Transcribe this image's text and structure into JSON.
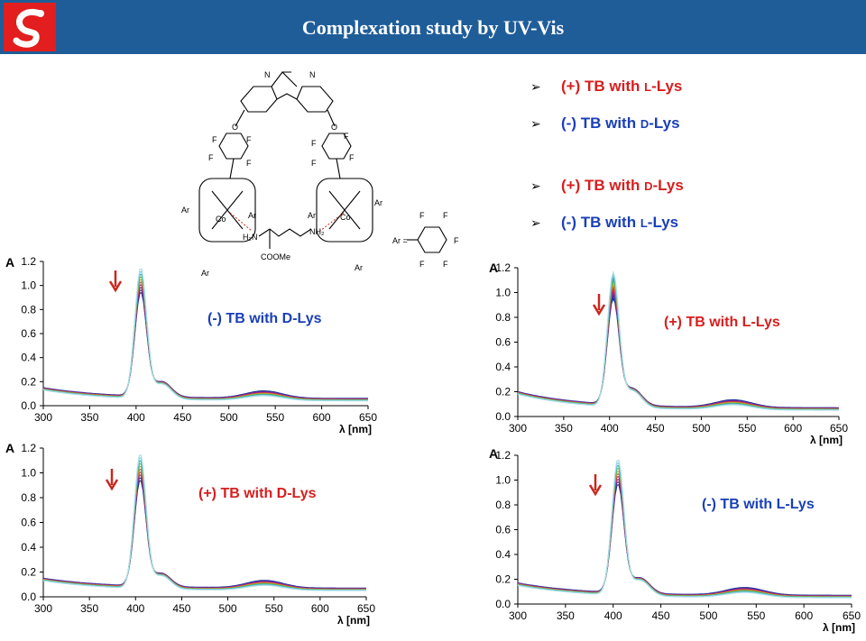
{
  "header": {
    "title": "Complexation study by UV-Vis",
    "bg_color": "#1f5d99",
    "logo_color": "#e21e1e"
  },
  "colors": {
    "plus": "#d71e1e",
    "minus": "#1a3fb8",
    "arrow_red": "#c8281e"
  },
  "bullets": [
    {
      "sign": "(+)",
      "rest": "TB with",
      "enant": "L",
      "tail": "-Lys",
      "color": "plus"
    },
    {
      "sign": "(-)",
      "rest": "TB with",
      "enant": "D",
      "tail": "-Lys",
      "color": "minus"
    },
    {
      "sign": "(+)",
      "rest": "TB with",
      "enant": "D",
      "tail": "-Lys",
      "color": "plus"
    },
    {
      "sign": "(-)",
      "rest": "TB with",
      "enant": "L",
      "tail": "-Lys",
      "color": "minus"
    }
  ],
  "structure": {
    "labels": {
      "N": "N",
      "O": "O",
      "F": "F",
      "Ar": "Ar",
      "Co": "Co",
      "H2N": "H₂N",
      "NH2": "NH₂",
      "COOMe": "COOMe",
      "ar_eq": "Ar ="
    }
  },
  "chart_data": [
    {
      "type": "line",
      "annotation": "(-) TB with D-Lys",
      "annotation_color": "minus",
      "ylabel": "A",
      "xlabel": "λ [nm]",
      "xlim": [
        300,
        650
      ],
      "ylim": [
        0,
        1.2
      ],
      "xticks": [
        300,
        350,
        400,
        450,
        500,
        550,
        600,
        650
      ],
      "yticks": [
        0.0,
        0.2,
        0.4,
        0.6,
        0.8,
        1.0,
        1.2
      ],
      "peak_x": 405,
      "peak_max": 1.12,
      "peak_min": 0.9,
      "shoulder_x": 428,
      "shoulder_y": 0.28,
      "band2_x": 538,
      "band2_y": 0.08,
      "start_y": 0.13,
      "end_y": 0.04,
      "n_series": 10
    },
    {
      "type": "line",
      "annotation": "(+) TB with L-Lys",
      "annotation_color": "plus",
      "ylabel": "A",
      "xlabel": "λ [nm]",
      "xlim": [
        300,
        650
      ],
      "ylim": [
        0,
        1.2
      ],
      "xticks": [
        300,
        350,
        400,
        450,
        500,
        550,
        600,
        650
      ],
      "yticks": [
        0.0,
        0.2,
        0.4,
        0.6,
        0.8,
        1.0,
        1.2
      ],
      "peak_x": 404,
      "peak_max": 1.12,
      "peak_min": 0.89,
      "shoulder_x": 425,
      "shoulder_y": 0.3,
      "band2_x": 535,
      "band2_y": 0.09,
      "start_y": 0.18,
      "end_y": 0.05,
      "n_series": 10
    },
    {
      "type": "line",
      "annotation": "(+) TB with D-Lys",
      "annotation_color": "plus",
      "ylabel": "A",
      "xlabel": "λ [nm]",
      "xlim": [
        300,
        650
      ],
      "ylim": [
        0,
        1.2
      ],
      "xticks": [
        300,
        350,
        400,
        450,
        500,
        550,
        600,
        650
      ],
      "yticks": [
        0.0,
        0.2,
        0.4,
        0.6,
        0.8,
        1.0,
        1.2
      ],
      "peak_x": 405,
      "peak_max": 1.13,
      "peak_min": 0.9,
      "shoulder_x": 428,
      "shoulder_y": 0.24,
      "band2_x": 540,
      "band2_y": 0.09,
      "start_y": 0.13,
      "end_y": 0.05,
      "n_series": 10
    },
    {
      "type": "line",
      "annotation": "(-) TB with L-Lys",
      "annotation_color": "minus",
      "ylabel": "A",
      "xlabel": "λ [nm]",
      "xlim": [
        300,
        650
      ],
      "ylim": [
        0,
        1.2
      ],
      "xticks": [
        300,
        350,
        400,
        450,
        500,
        550,
        600,
        650
      ],
      "yticks": [
        0.0,
        0.2,
        0.4,
        0.6,
        0.8,
        1.0,
        1.2
      ],
      "peak_x": 405,
      "peak_max": 1.14,
      "peak_min": 0.92,
      "shoulder_x": 428,
      "shoulder_y": 0.28,
      "band2_x": 538,
      "band2_y": 0.09,
      "start_y": 0.15,
      "end_y": 0.05,
      "n_series": 10
    }
  ]
}
